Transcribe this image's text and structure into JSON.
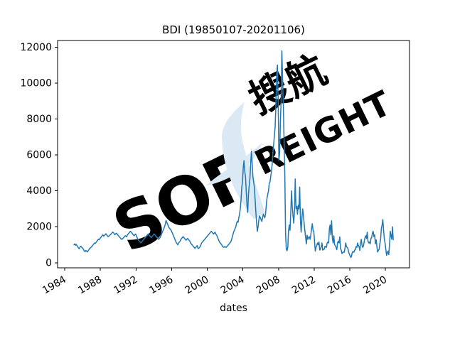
{
  "watermark": {
    "brand_main": "SOF",
    "brand_suffix": "REIGHT",
    "brand_cjk": "搜航",
    "color_letters": "#eef3fa",
    "color_suffix": "#dfe9f4",
    "color_swoosh": "#dbe9f5",
    "color_cjk": "#e3edf7"
  },
  "chart_data": {
    "type": "line",
    "title": "BDI (19850107-20201106)",
    "xlabel": "dates",
    "ylabel": "",
    "series_name": "BDI",
    "start_date_label": "19850107",
    "end_date_label": "20201106",
    "line_color": "#1f77b4",
    "line_width": 1.5,
    "grid": false,
    "legend": "none",
    "xticks": [
      1984,
      1988,
      1992,
      1996,
      2000,
      2004,
      2008,
      2012,
      2016,
      2020
    ],
    "yticks": [
      0,
      2000,
      4000,
      6000,
      8000,
      10000,
      12000
    ],
    "xlim": [
      1983.2,
      2022.7
    ],
    "ylim": [
      -285,
      12370
    ],
    "x_start_year": 1985.04,
    "x_step_years": 0.0833333,
    "values": [
      1000,
      1050,
      970,
      1020,
      950,
      900,
      820,
      780,
      850,
      920,
      880,
      840,
      800,
      720,
      650,
      620,
      680,
      640,
      600,
      660,
      720,
      780,
      820,
      860,
      900,
      950,
      1010,
      1060,
      1100,
      1080,
      1150,
      1200,
      1260,
      1310,
      1280,
      1350,
      1400,
      1450,
      1510,
      1550,
      1480,
      1520,
      1560,
      1610,
      1550,
      1500,
      1450,
      1480,
      1520,
      1560,
      1600,
      1650,
      1700,
      1680,
      1620,
      1560,
      1600,
      1640,
      1600,
      1550,
      1500,
      1450,
      1400,
      1350,
      1300,
      1320,
      1360,
      1400,
      1450,
      1500,
      1480,
      1440,
      1550,
      1600,
      1650,
      1700,
      1750,
      1700,
      1650,
      1600,
      1550,
      1500,
      1550,
      1600,
      1500,
      1400,
      1300,
      1250,
      1200,
      1150,
      1100,
      1150,
      1200,
      1250,
      1300,
      1350,
      1400,
      1450,
      1500,
      1550,
      1600,
      1550,
      1500,
      1450,
      1400,
      1450,
      1500,
      1550,
      1600,
      1550,
      1500,
      1450,
      1400,
      1350,
      1300,
      1350,
      1400,
      1500,
      1600,
      1700,
      1800,
      1900,
      2000,
      2150,
      2350,
      2250,
      2150,
      2050,
      1950,
      1900,
      1850,
      1800,
      1700,
      1600,
      1500,
      1400,
      1300,
      1200,
      1100,
      1050,
      1000,
      1100,
      1150,
      1200,
      1300,
      1350,
      1400,
      1450,
      1400,
      1350,
      1300,
      1250,
      1300,
      1350,
      1300,
      1250,
      1200,
      1100,
      1050,
      1000,
      950,
      900,
      850,
      800,
      850,
      900,
      950,
      800,
      800,
      850,
      900,
      1000,
      1100,
      1150,
      1200,
      1250,
      1300,
      1350,
      1400,
      1450,
      1500,
      1550,
      1600,
      1650,
      1700,
      1750,
      1700,
      1650,
      1600,
      1650,
      1700,
      1600,
      1550,
      1450,
      1350,
      1250,
      1150,
      1100,
      1050,
      1000,
      900,
      880,
      850,
      900,
      880,
      850,
      900,
      950,
      1000,
      1050,
      1100,
      1150,
      1250,
      1400,
      1550,
      1700,
      1800,
      1900,
      2000,
      2200,
      2300,
      2250,
      2500,
      2700,
      3000,
      3500,
      4200,
      4500,
      5300,
      5681,
      5100,
      4800,
      4000,
      3200,
      2800,
      3800,
      4300,
      4700,
      5500,
      6208,
      5500,
      4800,
      4500,
      4200,
      3500,
      2800,
      2200,
      1747,
      2000,
      2400,
      2600,
      2500,
      2400,
      2300,
      2500,
      2700,
      2600,
      2500,
      2700,
      3200,
      3600,
      3800,
      4000,
      4400,
      4500,
      4800,
      5100,
      5500,
      6200,
      6600,
      7100,
      7600,
      8800,
      10500,
      11000,
      9143,
      5700,
      6100,
      7800,
      9000,
      11793,
      10200,
      8700,
      6800,
      4800,
      1600,
      750,
      663,
      870,
      1800,
      2100,
      1800,
      2800,
      4000,
      3100,
      2650,
      2200,
      2900,
      4661,
      3005,
      3140,
      2700,
      3200,
      3000,
      4209,
      2400,
      1700,
      2468,
      2995,
      2678,
      2170,
      1773,
      1400,
      1043,
      1530,
      1300,
      1400,
      1450,
      1300,
      1550,
      1900,
      2173,
      1800,
      1738,
      1200,
      647,
      850,
      950,
      1100,
      1000,
      1150,
      700,
      750,
      900,
      1100,
      699,
      750,
      745,
      910,
      880,
      850,
      1100,
      1150,
      1100,
      1900,
      2100,
      1550,
      2337,
      1370,
      1100,
      1500,
      1000,
      950,
      850,
      723,
      1100,
      1200,
      1100,
      1437,
      782,
      700,
      509,
      560,
      600,
      580,
      800,
      1100,
      900,
      850,
      790,
      580,
      471,
      380,
      290,
      400,
      600,
      620,
      580,
      700,
      720,
      900,
      850,
      1100,
      960,
      900,
      685,
      1100,
      1300,
      950,
      850,
      950,
      1200,
      1400,
      1500,
      1350,
      1700,
      1200,
      1100,
      1150,
      1050,
      1350,
      1400,
      1650,
      1750,
      1450,
      1550,
      1050,
      1271,
      900,
      595,
      680,
      750,
      1050,
      1300,
      1900,
      2100,
      2400,
      1800,
      1350,
      1090,
      750,
      411,
      550,
      650,
      450,
      1000,
      1749,
      1500,
      1300,
      2000,
      1283
    ]
  }
}
